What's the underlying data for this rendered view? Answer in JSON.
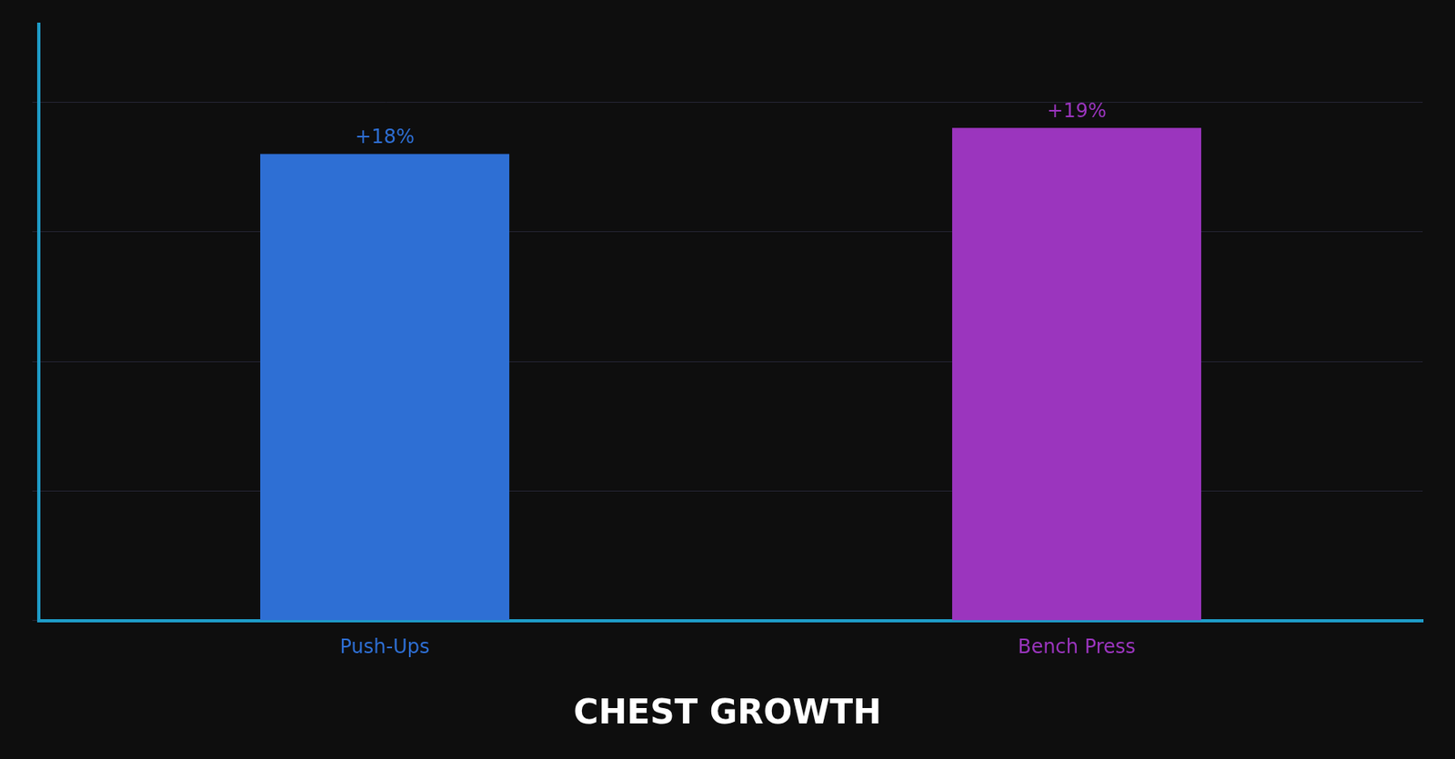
{
  "chart_data": {
    "type": "bar",
    "title": "CHEST GROWTH",
    "categories": [
      "Push-Ups",
      "Bench Press"
    ],
    "values": [
      18,
      19
    ],
    "value_labels": [
      "+18%",
      "+19%"
    ],
    "data_labels": true,
    "colors": [
      "#2E6FD4",
      "#9B35BE"
    ],
    "ylim": [
      0,
      23
    ],
    "yticks": [
      0,
      5,
      10,
      15,
      20
    ],
    "grid": true,
    "tick_labels": "x"
  }
}
